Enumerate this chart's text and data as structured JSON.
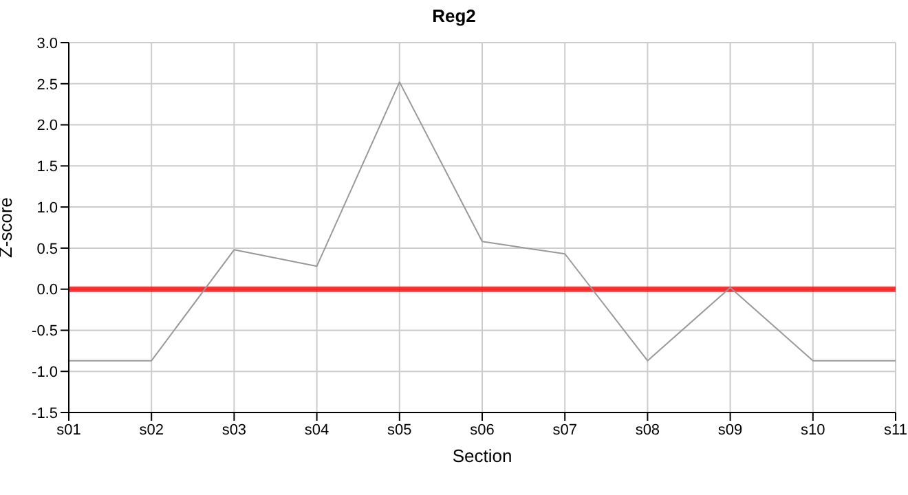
{
  "chart_data": {
    "type": "line",
    "title": "Reg2",
    "xlabel": "Section",
    "ylabel": "Z-score",
    "categories": [
      "s01",
      "s02",
      "s03",
      "s04",
      "s05",
      "s06",
      "s07",
      "s08",
      "s09",
      "s10",
      "s11"
    ],
    "series": [
      {
        "color": "#999999",
        "values": [
          -0.87,
          -0.87,
          0.48,
          0.28,
          2.52,
          0.58,
          0.43,
          -0.87,
          0.02,
          -0.87,
          -0.87
        ]
      }
    ],
    "ylim": [
      -1.5,
      3.0
    ],
    "yticks": [
      -1.5,
      {
        "value": -1,
        "label": "-1.0"
      },
      -0.5,
      {
        "value": 0,
        "label": "0.0"
      },
      0.5,
      {
        "value": 1,
        "label": "1.0"
      },
      1.5,
      {
        "value": 2,
        "label": "2.0"
      },
      2.5,
      {
        "value": 3,
        "label": "3.0"
      }
    ],
    "ref_lines": [
      {
        "axis": "y",
        "value": 0,
        "color": "#ff0000"
      }
    ],
    "grid": true,
    "legend": false
  }
}
